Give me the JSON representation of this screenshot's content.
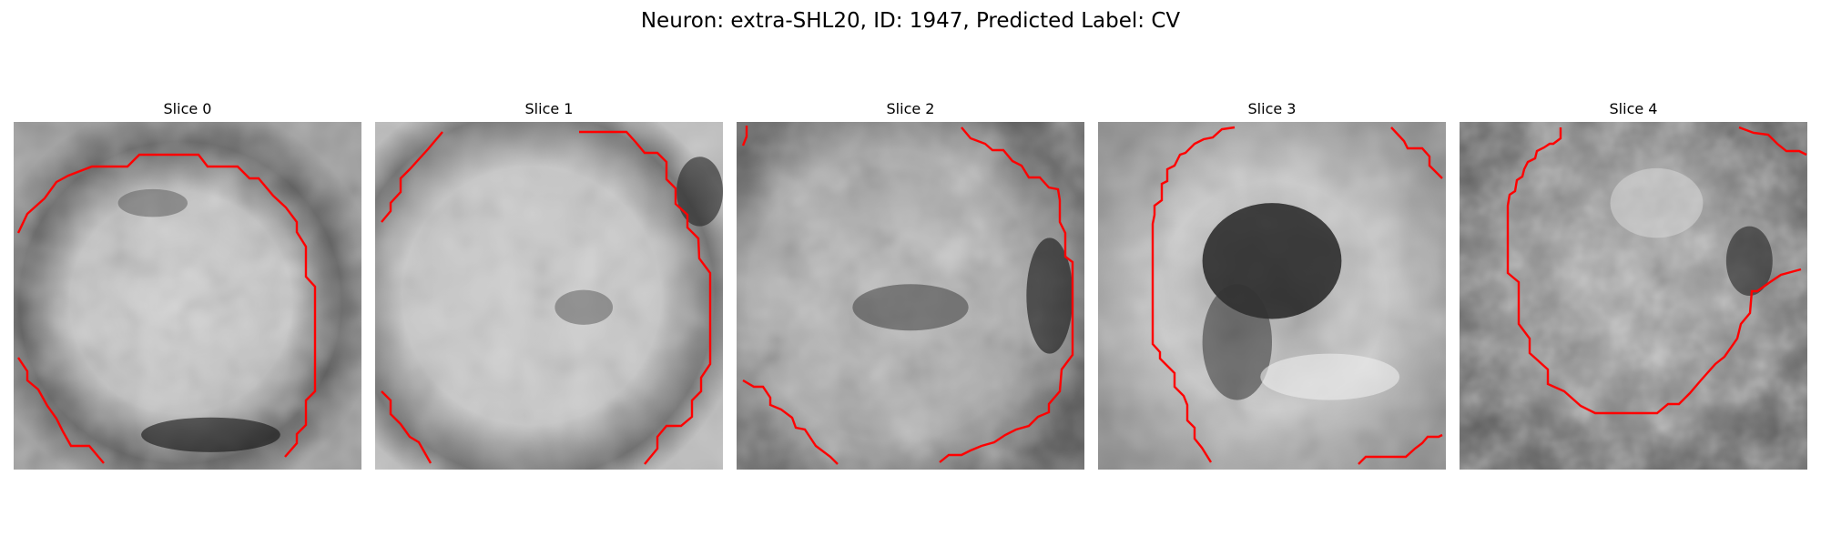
{
  "title": "Neuron: extra-SHL20, ID: 1947, Predicted Label: CV",
  "contour_color": "#ff0000",
  "slices": [
    {
      "label": "Slice 0"
    },
    {
      "label": "Slice 1"
    },
    {
      "label": "Slice 2"
    },
    {
      "label": "Slice 3"
    },
    {
      "label": "Slice 4"
    }
  ]
}
